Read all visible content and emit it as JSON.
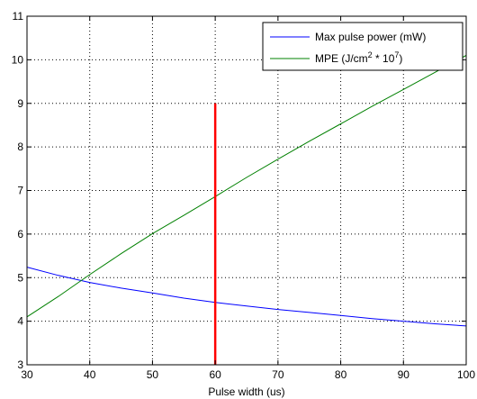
{
  "chart_data": {
    "type": "line",
    "title": "",
    "xlabel": "Pulse width (us)",
    "ylabel": "",
    "xlim": [
      30,
      100
    ],
    "ylim": [
      3,
      11
    ],
    "x_ticks": [
      30,
      40,
      50,
      60,
      70,
      80,
      90,
      100
    ],
    "y_ticks": [
      3,
      4,
      5,
      6,
      7,
      8,
      9,
      10,
      11
    ],
    "x_tick_labels": [
      "30",
      "40",
      "50",
      "60",
      "70",
      "80",
      "90",
      "100"
    ],
    "y_tick_labels": [
      "3",
      "4",
      "5",
      "6",
      "7",
      "8",
      "9",
      "10",
      "11"
    ],
    "grid": true,
    "grid_style": "dotted",
    "legend_position": "top-right",
    "series": [
      {
        "name": "Max pulse power (mW)",
        "legend_label": {
          "base": "Max pulse power (mW)"
        },
        "color": "#0000ff",
        "x": [
          30,
          35,
          40,
          45,
          50,
          55,
          60,
          65,
          70,
          75,
          80,
          85,
          90,
          95,
          100
        ],
        "values": [
          5.24,
          5.05,
          4.89,
          4.76,
          4.65,
          4.53,
          4.43,
          4.35,
          4.27,
          4.2,
          4.13,
          4.06,
          4.0,
          3.94,
          3.89
        ]
      },
      {
        "name": "MPE (J/cm^2 * 10^7)",
        "legend_label": {
          "base": "MPE (J/cm",
          "sup1": "2",
          "mid": " * 10",
          "sup2": "7",
          "end": ")"
        },
        "color": "#008000",
        "x": [
          30,
          35,
          40,
          45,
          50,
          55,
          60,
          65,
          70,
          75,
          80,
          85,
          90,
          95,
          100
        ],
        "values": [
          4.1,
          4.57,
          5.07,
          5.55,
          6.01,
          6.43,
          6.86,
          7.3,
          7.72,
          8.13,
          8.53,
          8.93,
          9.32,
          9.71,
          10.1
        ]
      }
    ],
    "annotations": [
      {
        "type": "vertical_line",
        "x": 60,
        "y_from": 3,
        "y_to": 9,
        "color": "#ff0000"
      }
    ]
  }
}
